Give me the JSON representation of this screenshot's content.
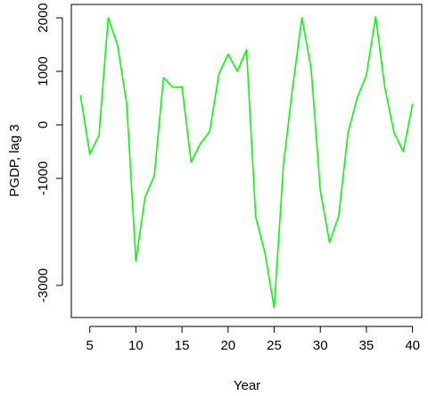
{
  "chart_data": {
    "type": "line",
    "title": "",
    "xlabel": "Year",
    "ylabel": "PGDP, lag 3",
    "xlim": [
      3,
      41
    ],
    "ylim": [
      -3600,
      2250
    ],
    "x_ticks": [
      5,
      10,
      15,
      20,
      25,
      30,
      35,
      40
    ],
    "y_ticks": [
      -3000,
      -1000,
      0,
      1000,
      2000
    ],
    "grid": false,
    "series": [
      {
        "color": "#00ff00",
        "x": [
          4,
          5,
          6,
          7,
          8,
          9,
          10,
          11,
          12,
          13,
          14,
          15,
          16,
          17,
          18,
          19,
          20,
          21,
          22,
          23,
          24,
          25,
          26,
          27,
          28,
          29,
          30,
          31,
          32,
          33,
          34,
          35,
          36,
          37,
          38,
          39,
          40
        ],
        "y": [
          550,
          -550,
          -200,
          2000,
          1500,
          400,
          -2550,
          -1350,
          -950,
          880,
          700,
          710,
          -700,
          -350,
          -130,
          950,
          1320,
          1000,
          1400,
          -1720,
          -2400,
          -3420,
          -750,
          700,
          2000,
          1060,
          -1220,
          -2200,
          -1700,
          -150,
          500,
          930,
          2020,
          700,
          -150,
          -500,
          390
        ]
      }
    ]
  }
}
